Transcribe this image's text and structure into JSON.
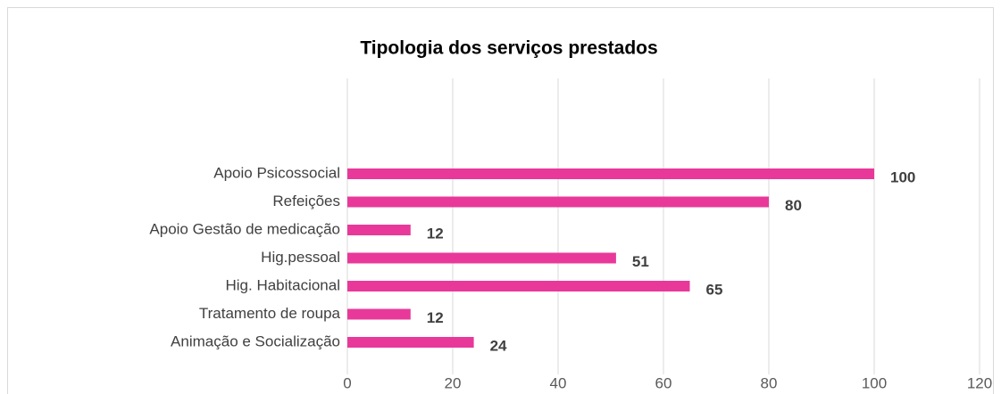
{
  "chart_data": {
    "type": "barh",
    "title": "Tipologia dos serviços prestados",
    "categories": [
      "Apoio Psicossocial",
      "Refeições",
      "Apoio Gestão de medicação",
      "Hig.pessoal",
      "Hig. Habitacional",
      "Tratamento de roupa",
      "Animação e Socialização"
    ],
    "values": [
      100,
      80,
      12,
      51,
      65,
      12,
      24
    ],
    "color": "#e8399a",
    "xlim": [
      0,
      120
    ],
    "xticks": [
      0,
      20,
      40,
      60,
      80,
      100,
      120
    ],
    "grid": true
  }
}
